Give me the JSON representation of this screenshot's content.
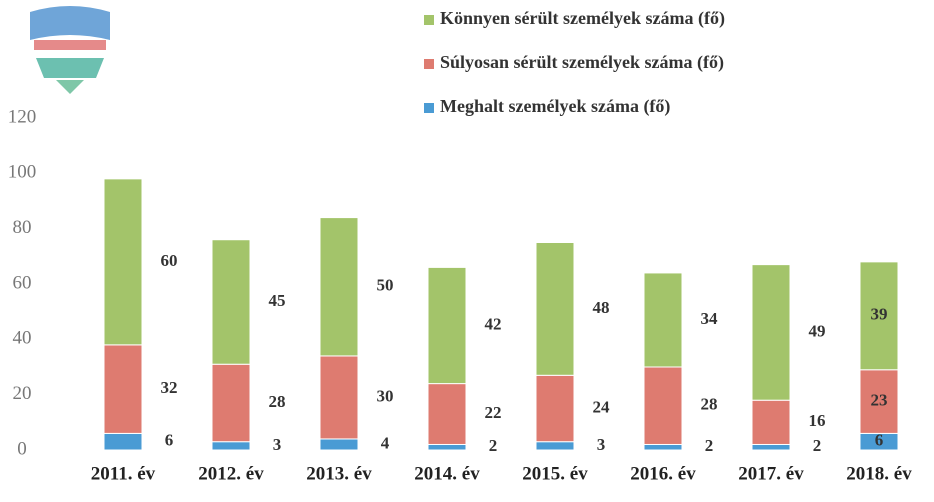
{
  "chart_data": {
    "type": "stacked_bar",
    "categories": [
      "2011. év",
      "2012. év",
      "2013. év",
      "2014. év",
      "2015. év",
      "2016. év",
      "2017. év",
      "2018. év"
    ],
    "series": [
      {
        "name": "Meghalt személyek száma (fő)",
        "color": "#4a9bd4",
        "values": [
          6,
          3,
          4,
          2,
          3,
          2,
          2,
          6
        ]
      },
      {
        "name": "Súlyosan sérült személyek száma (fő)",
        "color": "#de7b70",
        "values": [
          32,
          28,
          30,
          22,
          24,
          28,
          16,
          23
        ]
      },
      {
        "name": "Könnyen sérült személyek száma (fő)",
        "color": "#a3c46a",
        "values": [
          60,
          45,
          50,
          42,
          48,
          34,
          49,
          39
        ]
      }
    ],
    "ylim": [
      0,
      120
    ],
    "yticks": [
      0,
      20,
      40,
      60,
      80,
      100,
      120
    ],
    "grid": false,
    "legend": "top-right"
  }
}
